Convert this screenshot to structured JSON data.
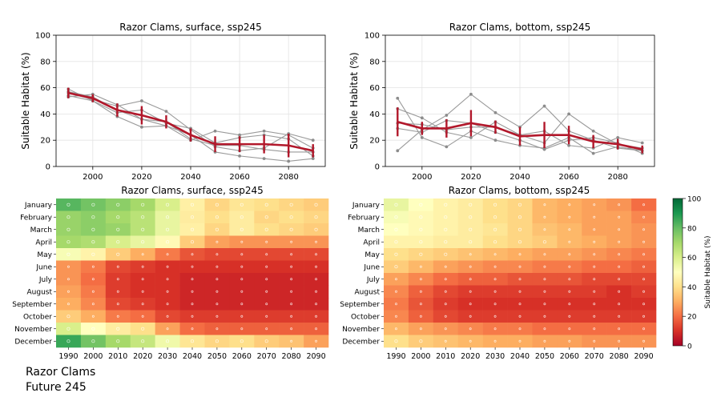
{
  "caption": {
    "line1": "Razor Clams",
    "line2": "Future 245"
  },
  "chart_data": [
    {
      "type": "line",
      "title": "Razor Clams, surface, ssp245",
      "xlabel": "",
      "ylabel": "Suitable Habitat (%)",
      "xlim": [
        1985,
        2095
      ],
      "ylim": [
        0,
        100
      ],
      "xticks": [
        2000,
        2020,
        2040,
        2060,
        2080
      ],
      "yticks": [
        0,
        20,
        40,
        60,
        80,
        100
      ],
      "grid": true,
      "x": [
        1990,
        2000,
        2010,
        2020,
        2030,
        2040,
        2050,
        2060,
        2070,
        2080,
        2090
      ],
      "ensemble": [
        [
          59,
          50,
          38,
          30,
          31,
          24,
          11,
          8,
          6,
          4,
          6
        ],
        [
          53,
          55,
          47,
          36,
          34,
          21,
          16,
          16,
          13,
          11,
          11
        ],
        [
          56,
          51,
          46,
          50,
          42,
          28,
          15,
          12,
          14,
          25,
          20
        ],
        [
          57,
          53,
          43,
          36,
          31,
          20,
          27,
          24,
          27,
          24,
          14
        ],
        [
          54,
          50,
          41,
          43,
          33,
          29,
          18,
          22,
          24,
          21,
          8
        ]
      ],
      "mean": [
        56,
        52,
        43,
        39,
        34,
        24,
        17,
        17,
        17,
        16,
        12
      ],
      "error": [
        4,
        3,
        5,
        7,
        5,
        5,
        6,
        6,
        7,
        9,
        5
      ]
    },
    {
      "type": "line",
      "title": "Razor Clams, bottom, ssp245",
      "xlabel": "",
      "ylabel": "Suitable Habitat (%)",
      "xlim": [
        1985,
        2095
      ],
      "ylim": [
        0,
        100
      ],
      "xticks": [
        2000,
        2020,
        2040,
        2060,
        2080
      ],
      "yticks": [
        0,
        20,
        40,
        60,
        80,
        100
      ],
      "grid": true,
      "x": [
        1990,
        2000,
        2010,
        2020,
        2030,
        2040,
        2050,
        2060,
        2070,
        2080,
        2090
      ],
      "ensemble": [
        [
          52,
          22,
          15,
          27,
          20,
          16,
          14,
          22,
          10,
          15,
          12
        ],
        [
          12,
          28,
          39,
          55,
          41,
          30,
          46,
          27,
          20,
          14,
          12
        ],
        [
          44,
          37,
          26,
          22,
          34,
          24,
          18,
          40,
          27,
          17,
          14
        ],
        [
          33,
          32,
          28,
          30,
          30,
          24,
          27,
          16,
          14,
          22,
          18
        ],
        [
          29,
          26,
          35,
          33,
          26,
          20,
          13,
          20,
          22,
          18,
          10
        ]
      ],
      "mean": [
        34,
        29,
        29,
        33,
        30,
        23,
        24,
        24,
        19,
        17,
        13
      ],
      "error": [
        11,
        5,
        7,
        10,
        5,
        7,
        10,
        7,
        5,
        4,
        3
      ]
    },
    {
      "type": "heatmap",
      "title": "Razor Clams, surface, ssp245",
      "x": [
        "1990",
        "2000",
        "2010",
        "2020",
        "2030",
        "2040",
        "2050",
        "2060",
        "2070",
        "2080",
        "2090"
      ],
      "y": [
        "January",
        "February",
        "March",
        "April",
        "May",
        "June",
        "July",
        "August",
        "September",
        "October",
        "November",
        "December"
      ],
      "values": [
        [
          82,
          78,
          74,
          70,
          60,
          45,
          38,
          42,
          40,
          38,
          36
        ],
        [
          72,
          74,
          70,
          66,
          56,
          44,
          40,
          44,
          38,
          40,
          38
        ],
        [
          72,
          74,
          72,
          66,
          56,
          45,
          38,
          44,
          40,
          38,
          36
        ],
        [
          70,
          68,
          60,
          56,
          48,
          36,
          28,
          26,
          26,
          26,
          26
        ],
        [
          52,
          46,
          36,
          30,
          22,
          16,
          14,
          14,
          14,
          14,
          14
        ],
        [
          26,
          22,
          14,
          12,
          10,
          10,
          10,
          10,
          10,
          10,
          10
        ],
        [
          26,
          20,
          12,
          10,
          10,
          8,
          8,
          8,
          8,
          8,
          8
        ],
        [
          28,
          22,
          12,
          10,
          10,
          8,
          8,
          8,
          8,
          8,
          8
        ],
        [
          30,
          24,
          14,
          12,
          10,
          8,
          8,
          8,
          8,
          8,
          8
        ],
        [
          36,
          30,
          22,
          20,
          14,
          12,
          12,
          12,
          12,
          12,
          12
        ],
        [
          60,
          50,
          44,
          40,
          28,
          20,
          18,
          18,
          18,
          18,
          18
        ],
        [
          86,
          78,
          70,
          64,
          54,
          42,
          38,
          40,
          36,
          34,
          28
        ]
      ],
      "colorbar_label": "Suitable Habitat (%)",
      "colorbar_range": [
        0,
        100
      ]
    },
    {
      "type": "heatmap",
      "title": "Razor Clams, bottom, ssp245",
      "x": [
        "1990",
        "2000",
        "2010",
        "2020",
        "2030",
        "2040",
        "2050",
        "2060",
        "2070",
        "2080",
        "2090"
      ],
      "y": [
        "January",
        "February",
        "March",
        "April",
        "May",
        "June",
        "July",
        "August",
        "September",
        "October",
        "November",
        "December"
      ],
      "values": [
        [
          56,
          50,
          46,
          44,
          40,
          38,
          32,
          30,
          28,
          26,
          20
        ],
        [
          52,
          48,
          46,
          44,
          40,
          38,
          32,
          30,
          28,
          28,
          24
        ],
        [
          50,
          48,
          46,
          44,
          42,
          38,
          34,
          32,
          28,
          28,
          26
        ],
        [
          46,
          46,
          44,
          44,
          40,
          38,
          36,
          32,
          30,
          28,
          26
        ],
        [
          40,
          38,
          36,
          34,
          32,
          30,
          28,
          28,
          26,
          24,
          22
        ],
        [
          36,
          32,
          28,
          26,
          24,
          24,
          22,
          22,
          20,
          20,
          18
        ],
        [
          28,
          24,
          20,
          18,
          18,
          16,
          16,
          16,
          14,
          14,
          14
        ],
        [
          24,
          18,
          14,
          12,
          12,
          12,
          12,
          12,
          12,
          10,
          12
        ],
        [
          22,
          16,
          12,
          10,
          10,
          10,
          10,
          10,
          10,
          10,
          10
        ],
        [
          24,
          18,
          14,
          12,
          12,
          12,
          12,
          12,
          12,
          12,
          12
        ],
        [
          32,
          28,
          26,
          24,
          22,
          22,
          20,
          20,
          20,
          20,
          20
        ],
        [
          40,
          36,
          34,
          32,
          30,
          30,
          28,
          28,
          26,
          26,
          26
        ]
      ],
      "colorbar_label": "Suitable Habitat (%)",
      "colorbar_range": [
        0,
        100
      ],
      "colorbar_ticks": [
        0,
        20,
        40,
        60,
        80,
        100
      ]
    }
  ]
}
